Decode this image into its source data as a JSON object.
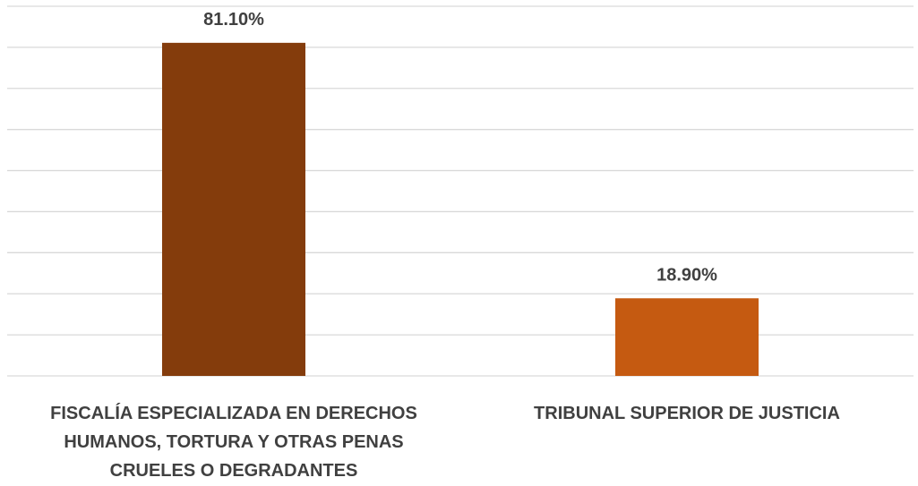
{
  "chart_data": {
    "type": "bar",
    "categories": [
      "FISCALÍA ESPECIALIZADA EN DERECHOS HUMANOS, TORTURA Y OTRAS PENAS CRUELES O DEGRADANTES",
      "TRIBUNAL SUPERIOR DE JUSTICIA"
    ],
    "values": [
      81.1,
      18.9
    ],
    "value_labels": [
      "81.10%",
      "18.90%"
    ],
    "colors": [
      "#843c0c",
      "#c55a11"
    ],
    "ylim": [
      0,
      90
    ],
    "yticks": [
      0,
      10,
      20,
      30,
      40,
      50,
      60,
      70,
      80,
      90
    ],
    "grid": true
  }
}
